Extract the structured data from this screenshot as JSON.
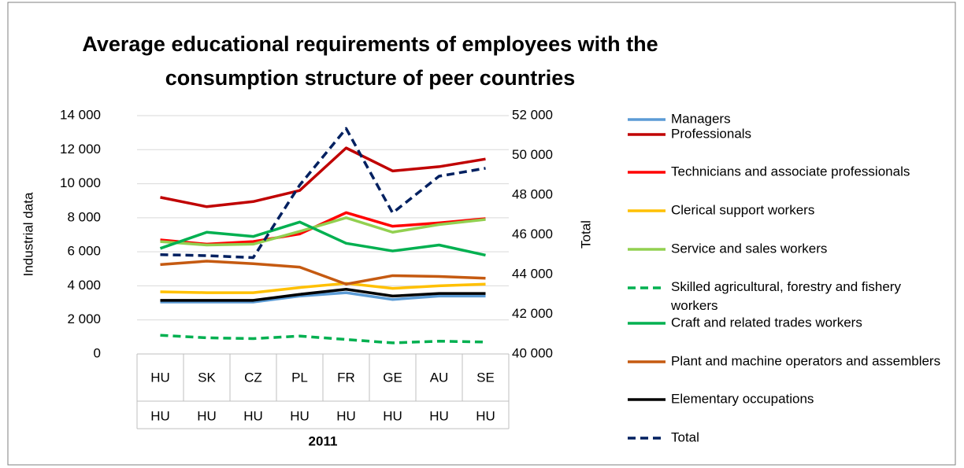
{
  "chart_data": {
    "type": "line",
    "title": [
      "Average educational requirements of employees with the",
      "consumption structure of peer countries"
    ],
    "categories": [
      "HU",
      "SK",
      "CZ",
      "PL",
      "FR",
      "GE",
      "AU",
      "SE"
    ],
    "categories2": [
      "HU",
      "HU",
      "HU",
      "HU",
      "HU",
      "HU",
      "HU",
      "HU"
    ],
    "x_group": "2011",
    "ylabel": "Industrial data",
    "y2label": "Total",
    "ylim": [
      0,
      14000
    ],
    "yticks": [
      0,
      {
        "value": 2000,
        "label": "2 000"
      },
      {
        "value": 4000,
        "label": "4 000"
      },
      {
        "value": 6000,
        "label": "6 000"
      },
      {
        "value": 8000,
        "label": "8 000"
      },
      {
        "value": 10000,
        "label": "10 000"
      },
      {
        "value": 12000,
        "label": "12 000"
      },
      {
        "value": 14000,
        "label": "14 000"
      }
    ],
    "y2lim": [
      40000,
      52000
    ],
    "y2ticks": [
      {
        "value": 40000,
        "label": "40 000"
      },
      {
        "value": 42000,
        "label": "42 000"
      },
      {
        "value": 44000,
        "label": "44 000"
      },
      {
        "value": 46000,
        "label": "46 000"
      },
      {
        "value": 48000,
        "label": "48 000"
      },
      {
        "value": 50000,
        "label": "50 000"
      },
      {
        "value": 52000,
        "label": "52 000"
      }
    ],
    "grid": true,
    "series": [
      {
        "name": "Managers",
        "color": "#5b9bd5",
        "values": [
          3050,
          3050,
          3050,
          3400,
          3600,
          3200,
          3400,
          3400
        ]
      },
      {
        "name": "Professionals",
        "color": "#c00000",
        "values": [
          9200,
          8650,
          8950,
          9600,
          12100,
          10750,
          11000,
          11450
        ]
      },
      {
        "name": "Technicians and associate professionals",
        "color": "#ff0000",
        "values": [
          6700,
          6450,
          6600,
          7050,
          8300,
          7500,
          7700,
          7950
        ]
      },
      {
        "name": "Clerical support workers",
        "color": "#ffc000",
        "values": [
          3650,
          3600,
          3600,
          3900,
          4150,
          3850,
          4000,
          4100
        ]
      },
      {
        "name": "Service and sales workers",
        "color": "#92d050",
        "values": [
          6600,
          6400,
          6450,
          7200,
          8000,
          7150,
          7600,
          7900
        ]
      },
      {
        "name": "Skilled agricultural, forestry and fishery workers",
        "color": "#00b050",
        "dashed": true,
        "values": [
          1100,
          950,
          900,
          1050,
          850,
          650,
          750,
          700
        ]
      },
      {
        "name": "Craft and related trades workers",
        "color": "#00b050",
        "values": [
          6200,
          7150,
          6900,
          7750,
          6500,
          6050,
          6400,
          5800
        ]
      },
      {
        "name": "Plant and machine operators and assemblers",
        "color": "#c55a11",
        "values": [
          5250,
          5450,
          5300,
          5100,
          4100,
          4600,
          4550,
          4450
        ]
      },
      {
        "name": "Elementary occupations",
        "color": "#000000",
        "values": [
          3150,
          3150,
          3150,
          3500,
          3800,
          3400,
          3550,
          3550
        ]
      },
      {
        "name": "Total",
        "color": "#002060",
        "dashed": true,
        "axis": "y2",
        "values": [
          45000,
          44950,
          44850,
          48500,
          51350,
          47100,
          48950,
          49350
        ]
      }
    ]
  }
}
